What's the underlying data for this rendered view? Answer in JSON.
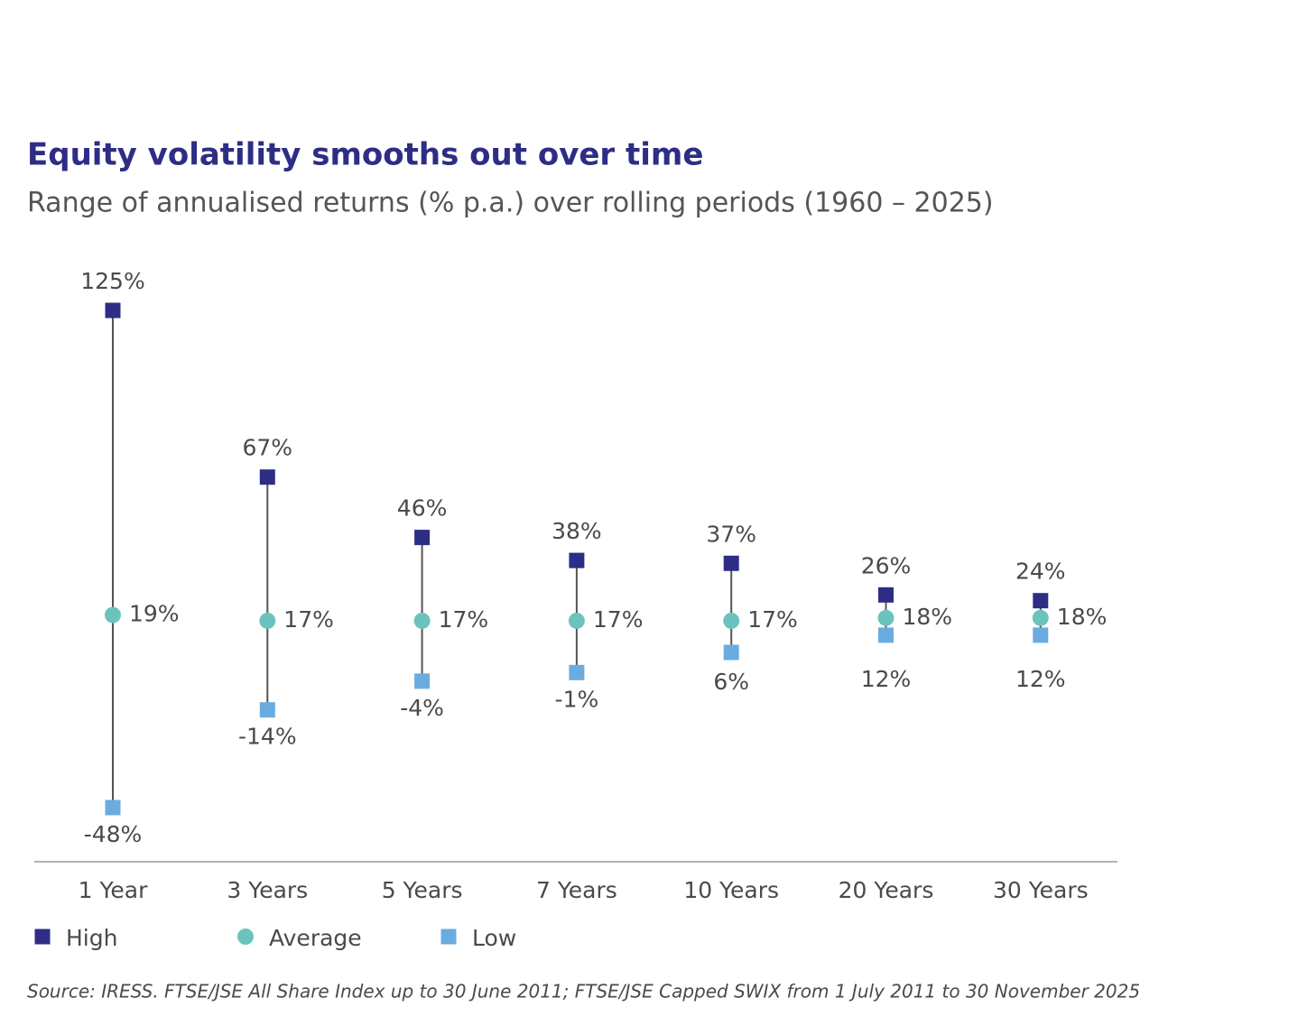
{
  "chart_data": {
    "type": "dot_range",
    "title": "Equity volatility smooths out over time",
    "subtitle": "Range of annualised returns (% p.a.) over rolling periods (1960 – 2025)",
    "categories": [
      "1 Year",
      "3 Years",
      "5 Years",
      "7 Years",
      "10 Years",
      "20 Years",
      "30 Years"
    ],
    "series": [
      {
        "name": "High",
        "color": "#2e2d85",
        "marker": "square",
        "values": [
          125,
          67,
          46,
          38,
          37,
          26,
          24
        ],
        "value_labels": [
          "125%",
          "67%",
          "46%",
          "38%",
          "37%",
          "26%",
          "24%"
        ]
      },
      {
        "name": "Average",
        "color": "#6cc3be",
        "marker": "circle",
        "values": [
          19,
          17,
          17,
          17,
          17,
          18,
          18
        ],
        "value_labels": [
          "19%",
          "17%",
          "17%",
          "17%",
          "17%",
          "18%",
          "18%"
        ]
      },
      {
        "name": "Low",
        "color": "#6aace0",
        "marker": "square",
        "values": [
          -48,
          -14,
          -4,
          -1,
          6,
          12,
          12
        ],
        "value_labels": [
          "-48%",
          "-14%",
          "-4%",
          "-1%",
          "6%",
          "12%",
          "12%"
        ]
      }
    ],
    "source": "Source: IRESS. FTSE/JSE All Share Index up to 30 June 2011; FTSE/JSE Capped SWIX from 1 July 2011 to 30 November 2025"
  }
}
